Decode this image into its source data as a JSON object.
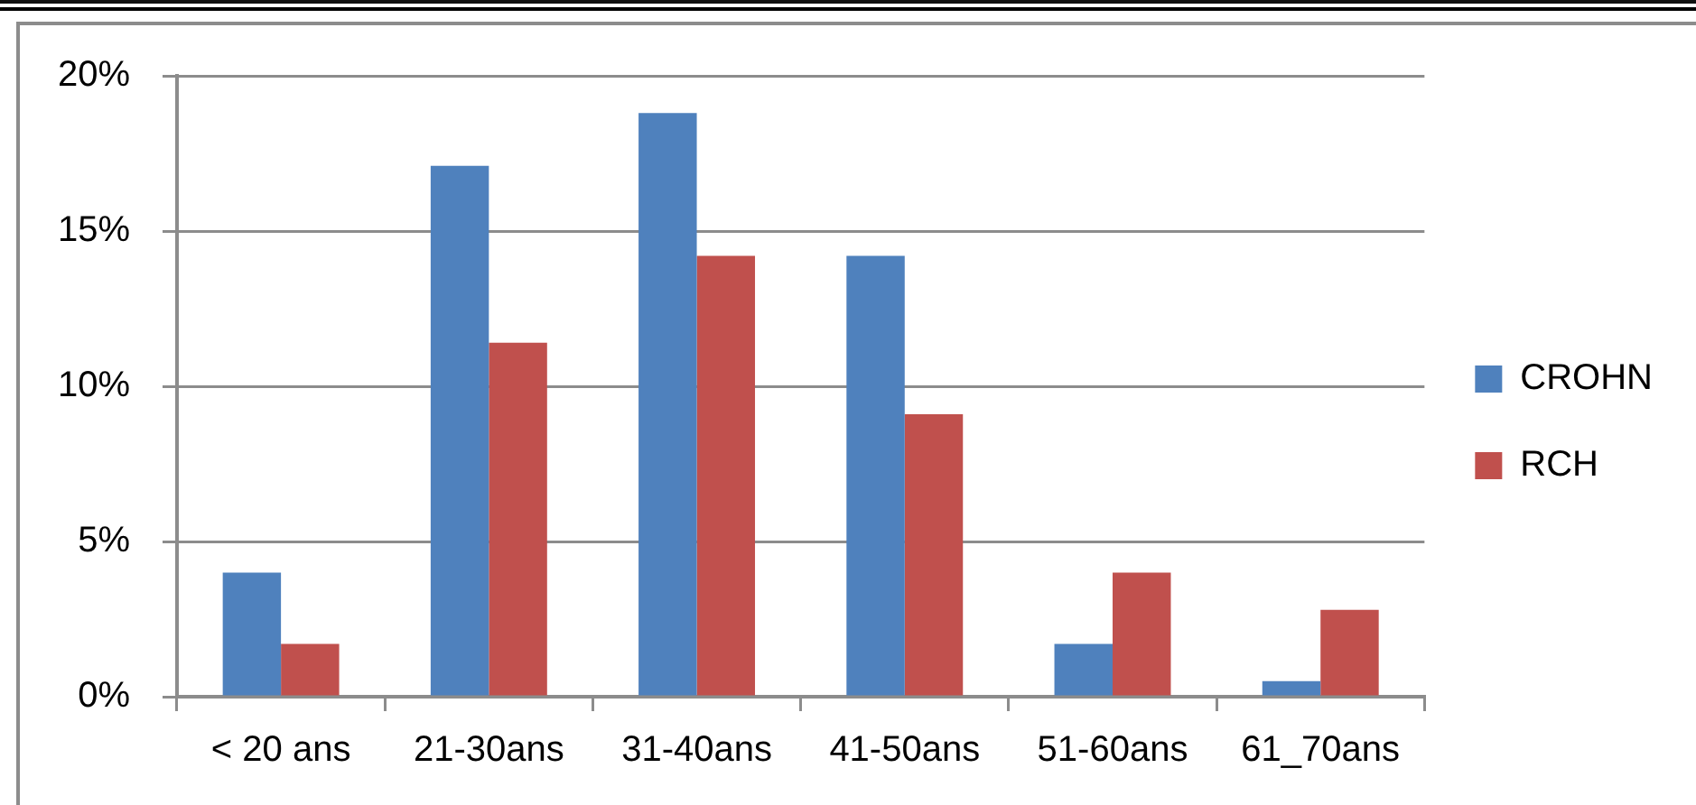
{
  "chart_data": {
    "type": "bar",
    "categories": [
      "< 20 ans",
      "21-30ans",
      "31-40ans",
      "41-50ans",
      "51-60ans",
      "61_70ans"
    ],
    "series": [
      {
        "name": "CROHN",
        "color": "#4f81bd",
        "values": [
          4.0,
          17.1,
          18.8,
          14.2,
          1.7,
          0.5
        ]
      },
      {
        "name": "RCH",
        "color": "#c0504d",
        "values": [
          1.7,
          11.4,
          14.2,
          9.1,
          4.0,
          2.8
        ]
      }
    ],
    "ylim": [
      0,
      20
    ],
    "yticks": [
      {
        "value": 0,
        "label": "0%"
      },
      {
        "value": 5,
        "label": "5%"
      },
      {
        "value": 10,
        "label": "10%"
      },
      {
        "value": 15,
        "label": "15%"
      },
      {
        "value": 20,
        "label": "20%"
      }
    ],
    "grid": "y",
    "legend": "right"
  }
}
